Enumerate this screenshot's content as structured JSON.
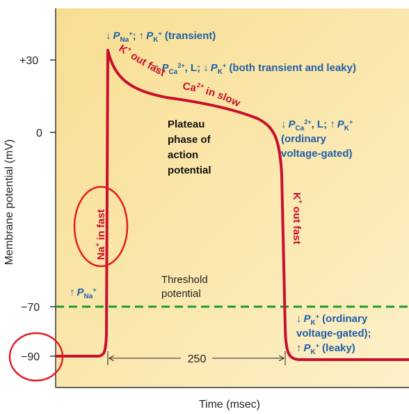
{
  "axes": {
    "y_label": "Membrane potential (mV)",
    "x_label": "Time (msec)",
    "y_ticks": [
      "+30",
      "0",
      "−70",
      "−90"
    ]
  },
  "colors": {
    "curve": "#c8102e",
    "threshold": "#1f9a2e",
    "label_blue": "#1f5fa8",
    "background": "#fbe6a6"
  },
  "labels": {
    "peak": {
      "arrow1": "↓",
      "p1": "P",
      "sub1": "Na",
      "sup1": "+",
      "sep": "; ",
      "arrow2": "↑",
      "p2": "P",
      "sub2": "K",
      "sup2": "+",
      "rest": " (transient)"
    },
    "plateau_line": {
      "arrow1": "↑",
      "p1": "P",
      "sub1": "Ca",
      "sup1": "2+",
      "mid": ", L; ",
      "arrow2": "↓",
      "p2": "P",
      "sub2": "K",
      "sup2": "+",
      "rest": " (both transient and leaky)"
    },
    "repol": {
      "line1": {
        "arrow1": "↓",
        "p1": "P",
        "sub1": "Ca",
        "sup1": "2+",
        "mid": ", L; ",
        "arrow2": "↑",
        "p2": "P",
        "sub2": "K",
        "sup2": "+"
      },
      "line2": "(ordinary",
      "line3": "voltage-gated)"
    },
    "rest_label": {
      "line1": {
        "arrow": "↓",
        "p": "P",
        "sub": "K",
        "sup": "+",
        "rest": " (ordinary"
      },
      "line2": "voltage-gated);",
      "line3": {
        "arrow": "↑",
        "p": "P",
        "sub": "K",
        "sup": "+",
        "rest": " (leaky)"
      }
    },
    "na_perm": {
      "arrow": "↑",
      "p": "P",
      "sub": "Na",
      "sup": "+"
    },
    "k_out_fast_top": {
      "k": "K",
      "sup": "+",
      "rest": " out fast"
    },
    "ca_in_slow": {
      "ca": "Ca",
      "sup": "2+",
      "rest": " in slow"
    },
    "k_out_fast_right": {
      "k": "K",
      "sup": "+",
      "rest": " out fast"
    },
    "na_in_fast": {
      "na": "Na",
      "sup": "+",
      "rest": " in fast"
    },
    "plateau": [
      "Plateau",
      "phase of",
      "action",
      "potential"
    ],
    "threshold": [
      "Threshold",
      "potential"
    ],
    "duration": "250"
  }
}
